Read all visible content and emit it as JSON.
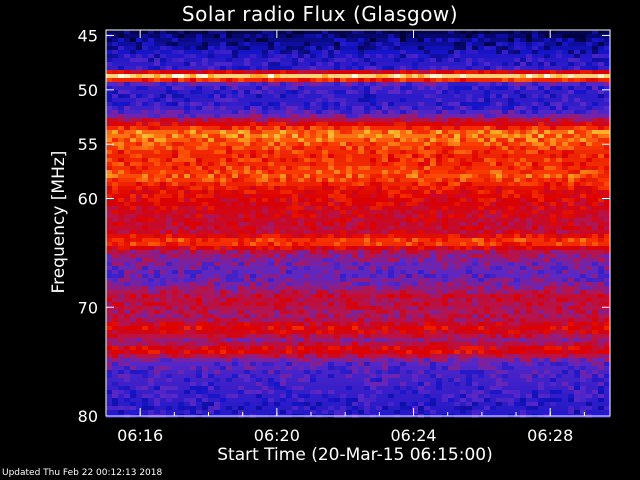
{
  "chart_data": {
    "type": "heatmap",
    "title": "Solar radio Flux (Glasgow)",
    "xlabel": "Start Time (20-Mar-15 06:15:00)",
    "ylabel": "Frequency [MHz]",
    "x_ticks": [
      "06:16",
      "06:20",
      "06:24",
      "06:28"
    ],
    "x_tick_minutes": [
      16,
      20,
      24,
      28
    ],
    "xlim_minutes": [
      15,
      29.75
    ],
    "y_ticks": [
      45,
      50,
      55,
      60,
      70,
      80
    ],
    "ylim": [
      44.5,
      80
    ],
    "colormap": "blue-red-yellow-white",
    "colors": {
      "background": "#000000",
      "axis": "#ffffff"
    },
    "intensity_profile": [
      {
        "freq": 45,
        "level": 0.05
      },
      {
        "freq": 46,
        "level": 0.12
      },
      {
        "freq": 47,
        "level": 0.18
      },
      {
        "freq": 48,
        "level": 0.22
      },
      {
        "freq": 48.8,
        "level": 0.98
      },
      {
        "freq": 49.5,
        "level": 0.25
      },
      {
        "freq": 50.5,
        "level": 0.2
      },
      {
        "freq": 51.5,
        "level": 0.22
      },
      {
        "freq": 52.3,
        "level": 0.3
      },
      {
        "freq": 53,
        "level": 0.55
      },
      {
        "freq": 54,
        "level": 0.8
      },
      {
        "freq": 55,
        "level": 0.72
      },
      {
        "freq": 56,
        "level": 0.66
      },
      {
        "freq": 57,
        "level": 0.68
      },
      {
        "freq": 58,
        "level": 0.74
      },
      {
        "freq": 59,
        "level": 0.62
      },
      {
        "freq": 60,
        "level": 0.58
      },
      {
        "freq": 61,
        "level": 0.55
      },
      {
        "freq": 62,
        "level": 0.52
      },
      {
        "freq": 63,
        "level": 0.5
      },
      {
        "freq": 64,
        "level": 0.74
      },
      {
        "freq": 65,
        "level": 0.42
      },
      {
        "freq": 66,
        "level": 0.34
      },
      {
        "freq": 67,
        "level": 0.3
      },
      {
        "freq": 68,
        "level": 0.36
      },
      {
        "freq": 69,
        "level": 0.5
      },
      {
        "freq": 70,
        "level": 0.46
      },
      {
        "freq": 71,
        "level": 0.44
      },
      {
        "freq": 72,
        "level": 0.6
      },
      {
        "freq": 73,
        "level": 0.4
      },
      {
        "freq": 74,
        "level": 0.62
      },
      {
        "freq": 75,
        "level": 0.3
      },
      {
        "freq": 76,
        "level": 0.26
      },
      {
        "freq": 77,
        "level": 0.24
      },
      {
        "freq": 78,
        "level": 0.22
      },
      {
        "freq": 79,
        "level": 0.2
      },
      {
        "freq": 80,
        "level": 0.18
      }
    ]
  },
  "footer": {
    "updated": "Updated Thu Feb 22 00:12:13 2018"
  }
}
